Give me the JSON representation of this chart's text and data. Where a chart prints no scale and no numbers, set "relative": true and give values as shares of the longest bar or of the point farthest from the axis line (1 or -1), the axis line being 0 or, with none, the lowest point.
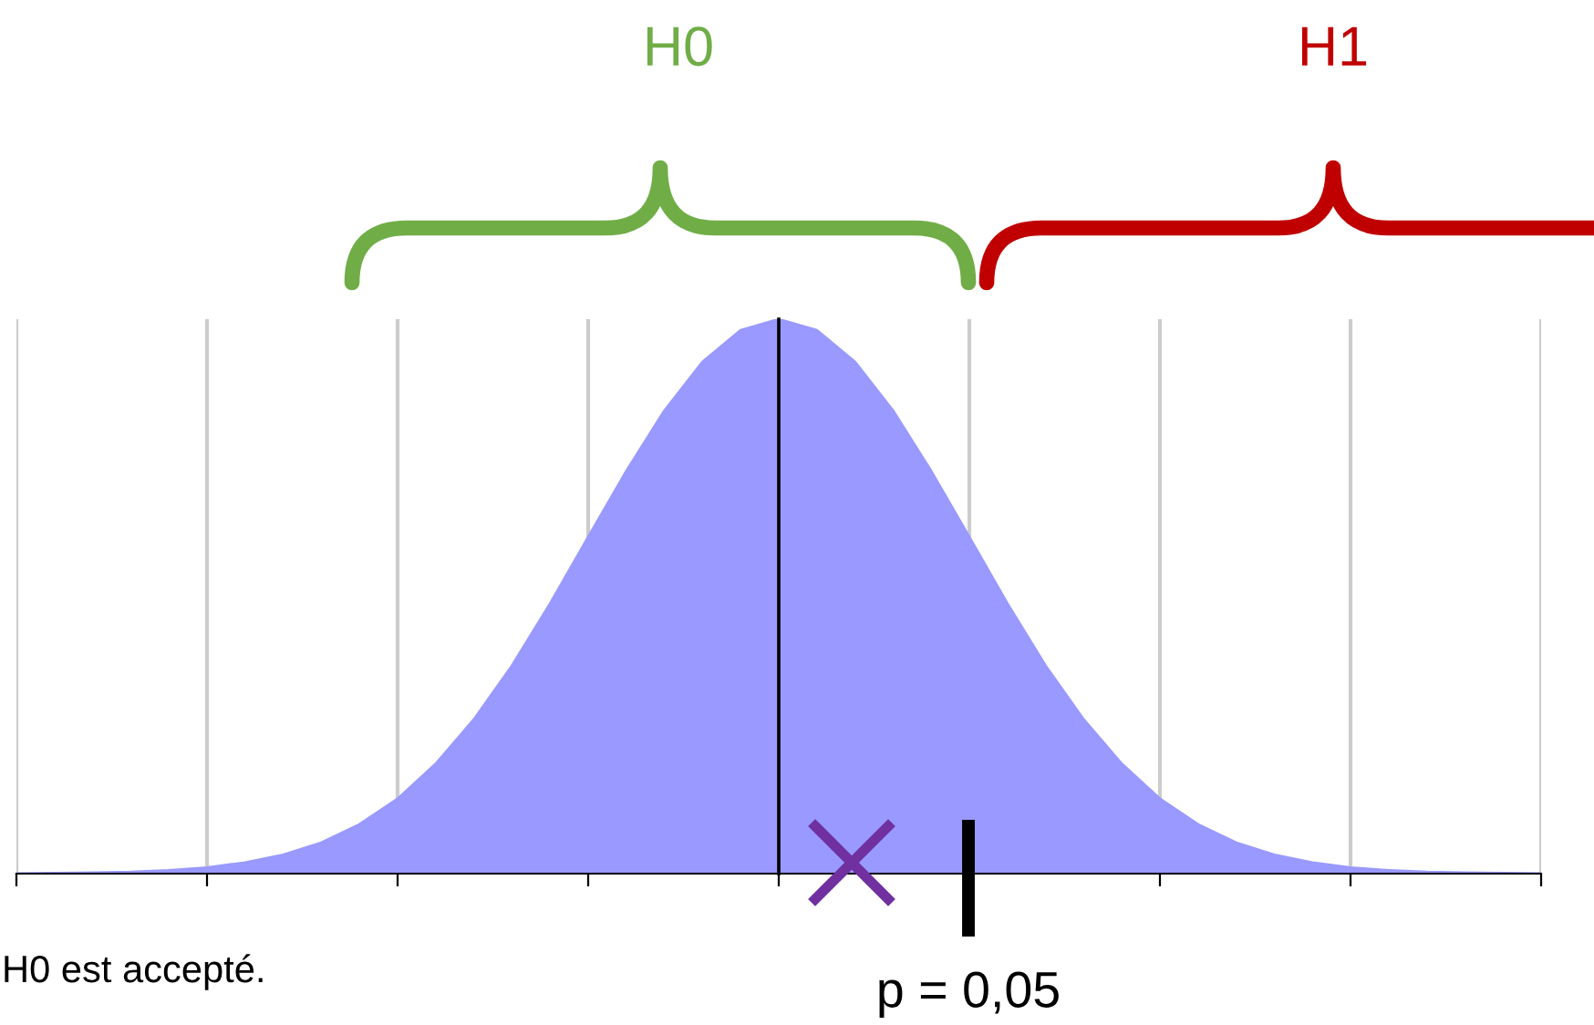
{
  "chart_data": {
    "type": "area",
    "relative": true,
    "categories": [
      null,
      null,
      null,
      null,
      null,
      null,
      null,
      null,
      null,
      null,
      null,
      null,
      null,
      null,
      null,
      null,
      null,
      null,
      null,
      null,
      null,
      null,
      null,
      null,
      null,
      null,
      null,
      null,
      null,
      null,
      null,
      null,
      null,
      null,
      null,
      null,
      null,
      null,
      null,
      null,
      null
    ],
    "series": [
      {
        "color": "#9999ff",
        "values": [
          0,
          0.001,
          0.002,
          0.003,
          0.006,
          0.011,
          0.02,
          0.034,
          0.056,
          0.089,
          0.135,
          0.198,
          0.278,
          0.375,
          0.487,
          0.607,
          0.726,
          0.835,
          0.923,
          0.98,
          1,
          0.98,
          0.923,
          0.835,
          0.726,
          0.607,
          0.487,
          0.375,
          0.278,
          0.198,
          0.135,
          0.089,
          0.056,
          0.034,
          0.02,
          0.011,
          0.006,
          0.003,
          0.002,
          0.001,
          0
        ]
      }
    ],
    "grid": "x",
    "annotations": [
      "H0",
      "H1",
      "p = 0,05",
      "H0 est accepté."
    ]
  }
}
